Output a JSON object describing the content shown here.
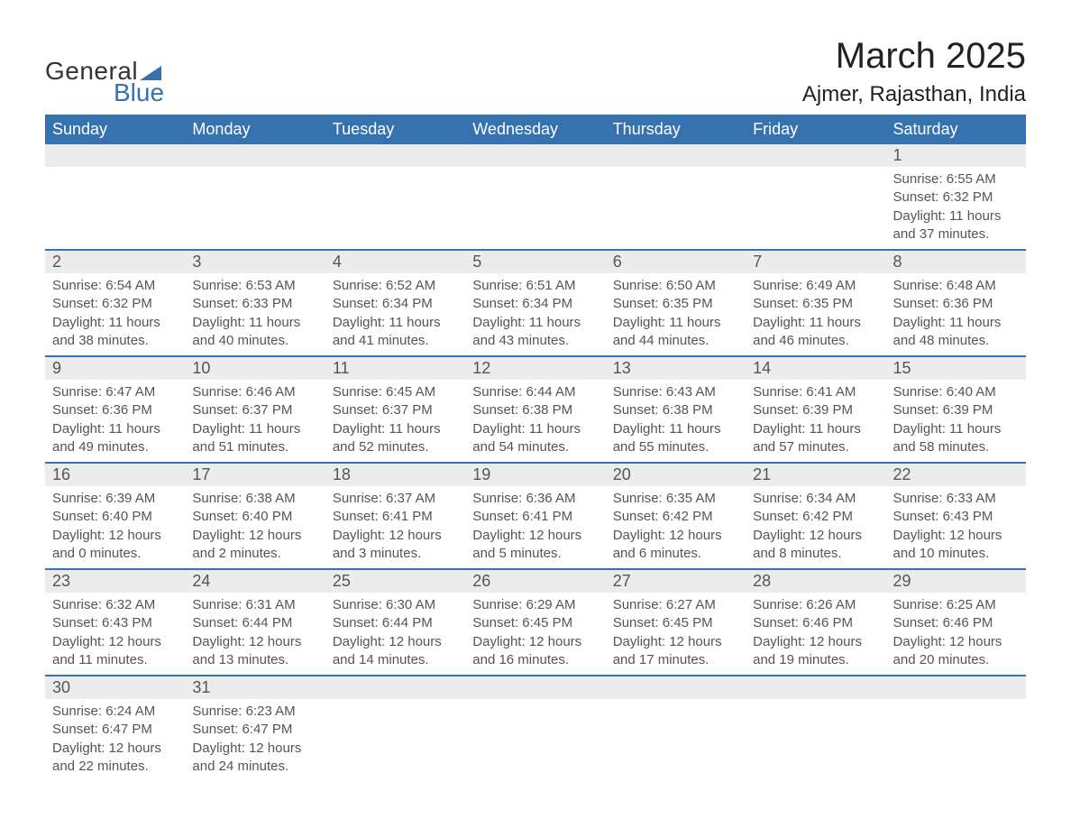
{
  "brand": {
    "name1": "General",
    "name2": "Blue"
  },
  "title": {
    "month": "March 2025",
    "location": "Ajmer, Rajasthan, India"
  },
  "colors": {
    "header_bg": "#3772b0",
    "header_text": "#ffffff",
    "daynum_bg": "#ececec",
    "row_divider": "#3772b0",
    "text": "#555555",
    "title_text": "#222222",
    "background": "#ffffff"
  },
  "font": {
    "family": "Arial",
    "title_size_pt": 30,
    "location_size_pt": 18,
    "dow_size_pt": 14,
    "day_size_pt": 14,
    "detail_size_pt": 11
  },
  "days_of_week": [
    "Sunday",
    "Monday",
    "Tuesday",
    "Wednesday",
    "Thursday",
    "Friday",
    "Saturday"
  ],
  "weeks": [
    [
      null,
      null,
      null,
      null,
      null,
      null,
      {
        "num": "1",
        "sunrise": "Sunrise: 6:55 AM",
        "sunset": "Sunset: 6:32 PM",
        "daylight1": "Daylight: 11 hours",
        "daylight2": "and 37 minutes."
      }
    ],
    [
      {
        "num": "2",
        "sunrise": "Sunrise: 6:54 AM",
        "sunset": "Sunset: 6:32 PM",
        "daylight1": "Daylight: 11 hours",
        "daylight2": "and 38 minutes."
      },
      {
        "num": "3",
        "sunrise": "Sunrise: 6:53 AM",
        "sunset": "Sunset: 6:33 PM",
        "daylight1": "Daylight: 11 hours",
        "daylight2": "and 40 minutes."
      },
      {
        "num": "4",
        "sunrise": "Sunrise: 6:52 AM",
        "sunset": "Sunset: 6:34 PM",
        "daylight1": "Daylight: 11 hours",
        "daylight2": "and 41 minutes."
      },
      {
        "num": "5",
        "sunrise": "Sunrise: 6:51 AM",
        "sunset": "Sunset: 6:34 PM",
        "daylight1": "Daylight: 11 hours",
        "daylight2": "and 43 minutes."
      },
      {
        "num": "6",
        "sunrise": "Sunrise: 6:50 AM",
        "sunset": "Sunset: 6:35 PM",
        "daylight1": "Daylight: 11 hours",
        "daylight2": "and 44 minutes."
      },
      {
        "num": "7",
        "sunrise": "Sunrise: 6:49 AM",
        "sunset": "Sunset: 6:35 PM",
        "daylight1": "Daylight: 11 hours",
        "daylight2": "and 46 minutes."
      },
      {
        "num": "8",
        "sunrise": "Sunrise: 6:48 AM",
        "sunset": "Sunset: 6:36 PM",
        "daylight1": "Daylight: 11 hours",
        "daylight2": "and 48 minutes."
      }
    ],
    [
      {
        "num": "9",
        "sunrise": "Sunrise: 6:47 AM",
        "sunset": "Sunset: 6:36 PM",
        "daylight1": "Daylight: 11 hours",
        "daylight2": "and 49 minutes."
      },
      {
        "num": "10",
        "sunrise": "Sunrise: 6:46 AM",
        "sunset": "Sunset: 6:37 PM",
        "daylight1": "Daylight: 11 hours",
        "daylight2": "and 51 minutes."
      },
      {
        "num": "11",
        "sunrise": "Sunrise: 6:45 AM",
        "sunset": "Sunset: 6:37 PM",
        "daylight1": "Daylight: 11 hours",
        "daylight2": "and 52 minutes."
      },
      {
        "num": "12",
        "sunrise": "Sunrise: 6:44 AM",
        "sunset": "Sunset: 6:38 PM",
        "daylight1": "Daylight: 11 hours",
        "daylight2": "and 54 minutes."
      },
      {
        "num": "13",
        "sunrise": "Sunrise: 6:43 AM",
        "sunset": "Sunset: 6:38 PM",
        "daylight1": "Daylight: 11 hours",
        "daylight2": "and 55 minutes."
      },
      {
        "num": "14",
        "sunrise": "Sunrise: 6:41 AM",
        "sunset": "Sunset: 6:39 PM",
        "daylight1": "Daylight: 11 hours",
        "daylight2": "and 57 minutes."
      },
      {
        "num": "15",
        "sunrise": "Sunrise: 6:40 AM",
        "sunset": "Sunset: 6:39 PM",
        "daylight1": "Daylight: 11 hours",
        "daylight2": "and 58 minutes."
      }
    ],
    [
      {
        "num": "16",
        "sunrise": "Sunrise: 6:39 AM",
        "sunset": "Sunset: 6:40 PM",
        "daylight1": "Daylight: 12 hours",
        "daylight2": "and 0 minutes."
      },
      {
        "num": "17",
        "sunrise": "Sunrise: 6:38 AM",
        "sunset": "Sunset: 6:40 PM",
        "daylight1": "Daylight: 12 hours",
        "daylight2": "and 2 minutes."
      },
      {
        "num": "18",
        "sunrise": "Sunrise: 6:37 AM",
        "sunset": "Sunset: 6:41 PM",
        "daylight1": "Daylight: 12 hours",
        "daylight2": "and 3 minutes."
      },
      {
        "num": "19",
        "sunrise": "Sunrise: 6:36 AM",
        "sunset": "Sunset: 6:41 PM",
        "daylight1": "Daylight: 12 hours",
        "daylight2": "and 5 minutes."
      },
      {
        "num": "20",
        "sunrise": "Sunrise: 6:35 AM",
        "sunset": "Sunset: 6:42 PM",
        "daylight1": "Daylight: 12 hours",
        "daylight2": "and 6 minutes."
      },
      {
        "num": "21",
        "sunrise": "Sunrise: 6:34 AM",
        "sunset": "Sunset: 6:42 PM",
        "daylight1": "Daylight: 12 hours",
        "daylight2": "and 8 minutes."
      },
      {
        "num": "22",
        "sunrise": "Sunrise: 6:33 AM",
        "sunset": "Sunset: 6:43 PM",
        "daylight1": "Daylight: 12 hours",
        "daylight2": "and 10 minutes."
      }
    ],
    [
      {
        "num": "23",
        "sunrise": "Sunrise: 6:32 AM",
        "sunset": "Sunset: 6:43 PM",
        "daylight1": "Daylight: 12 hours",
        "daylight2": "and 11 minutes."
      },
      {
        "num": "24",
        "sunrise": "Sunrise: 6:31 AM",
        "sunset": "Sunset: 6:44 PM",
        "daylight1": "Daylight: 12 hours",
        "daylight2": "and 13 minutes."
      },
      {
        "num": "25",
        "sunrise": "Sunrise: 6:30 AM",
        "sunset": "Sunset: 6:44 PM",
        "daylight1": "Daylight: 12 hours",
        "daylight2": "and 14 minutes."
      },
      {
        "num": "26",
        "sunrise": "Sunrise: 6:29 AM",
        "sunset": "Sunset: 6:45 PM",
        "daylight1": "Daylight: 12 hours",
        "daylight2": "and 16 minutes."
      },
      {
        "num": "27",
        "sunrise": "Sunrise: 6:27 AM",
        "sunset": "Sunset: 6:45 PM",
        "daylight1": "Daylight: 12 hours",
        "daylight2": "and 17 minutes."
      },
      {
        "num": "28",
        "sunrise": "Sunrise: 6:26 AM",
        "sunset": "Sunset: 6:46 PM",
        "daylight1": "Daylight: 12 hours",
        "daylight2": "and 19 minutes."
      },
      {
        "num": "29",
        "sunrise": "Sunrise: 6:25 AM",
        "sunset": "Sunset: 6:46 PM",
        "daylight1": "Daylight: 12 hours",
        "daylight2": "and 20 minutes."
      }
    ],
    [
      {
        "num": "30",
        "sunrise": "Sunrise: 6:24 AM",
        "sunset": "Sunset: 6:47 PM",
        "daylight1": "Daylight: 12 hours",
        "daylight2": "and 22 minutes."
      },
      {
        "num": "31",
        "sunrise": "Sunrise: 6:23 AM",
        "sunset": "Sunset: 6:47 PM",
        "daylight1": "Daylight: 12 hours",
        "daylight2": "and 24 minutes."
      },
      null,
      null,
      null,
      null,
      null
    ]
  ]
}
